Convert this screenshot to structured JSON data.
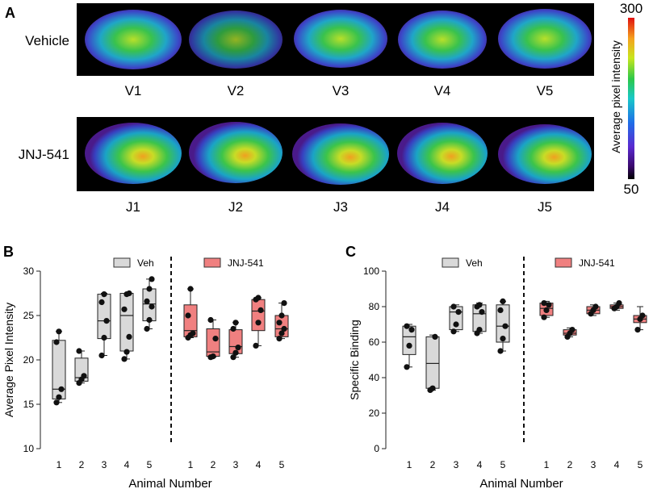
{
  "panel_a": {
    "label": "A",
    "row_labels": [
      "Vehicle",
      "JNJ-541"
    ],
    "vehicle_ids": [
      "V1",
      "V2",
      "V3",
      "V4",
      "V5"
    ],
    "jnj_ids": [
      "J1",
      "J2",
      "J3",
      "J4",
      "J5"
    ],
    "colorbar": {
      "max": "300",
      "min": "50",
      "label": "Average pixel intensity"
    }
  },
  "chart_data": [
    {
      "type": "box",
      "panel": "B",
      "ylabel": "Average Pixel Intensity",
      "xlabel": "Animal Number",
      "ylim": [
        10,
        30
      ],
      "yticks": [
        10,
        15,
        20,
        25,
        30
      ],
      "legend": [
        "Veh",
        "JNJ-541"
      ],
      "colors": {
        "Veh": "#d9d9d9",
        "JNJ-541": "#f08080"
      },
      "groups": [
        {
          "name": "Veh",
          "boxes": [
            {
              "animal": "1",
              "min": 15.2,
              "q1": 15.6,
              "median": 16.7,
              "q3": 22.2,
              "max": 23.2,
              "points": [
                15.2,
                15.8,
                16.7,
                22.0,
                23.2
              ]
            },
            {
              "animal": "2",
              "min": 17.4,
              "q1": 17.6,
              "median": 18.0,
              "q3": 20.2,
              "max": 21.0,
              "points": [
                17.4,
                17.8,
                18.2,
                21.0
              ]
            },
            {
              "animal": "3",
              "min": 20.5,
              "q1": 22.4,
              "median": 24.4,
              "q3": 27.4,
              "max": 27.5,
              "points": [
                20.5,
                22.5,
                24.4,
                26.5,
                27.4
              ]
            },
            {
              "animal": "4",
              "min": 20.1,
              "q1": 21.0,
              "median": 25.0,
              "q3": 27.5,
              "max": 27.5,
              "points": [
                20.1,
                20.9,
                22.6,
                25.7,
                27.4,
                27.5
              ]
            },
            {
              "animal": "5",
              "min": 23.5,
              "q1": 24.4,
              "median": 26.3,
              "q3": 28.0,
              "max": 29.1,
              "points": [
                23.5,
                24.5,
                26.0,
                26.6,
                28.0,
                29.1
              ]
            }
          ]
        },
        {
          "name": "JNJ-541",
          "boxes": [
            {
              "animal": "1",
              "min": 22.5,
              "q1": 22.6,
              "median": 23.3,
              "q3": 26.2,
              "max": 28.0,
              "points": [
                22.5,
                22.8,
                23.0,
                25.0,
                28.0
              ]
            },
            {
              "animal": "2",
              "min": 20.3,
              "q1": 20.4,
              "median": 20.9,
              "q3": 23.5,
              "max": 24.5,
              "points": [
                20.3,
                20.4,
                22.4,
                24.5
              ]
            },
            {
              "animal": "3",
              "min": 20.3,
              "q1": 20.7,
              "median": 21.5,
              "q3": 23.4,
              "max": 24.2,
              "points": [
                20.3,
                20.8,
                21.4,
                23.5,
                24.2
              ]
            },
            {
              "animal": "4",
              "min": 21.6,
              "q1": 23.3,
              "median": 25.5,
              "q3": 26.8,
              "max": 27.0,
              "points": [
                21.6,
                24.2,
                25.6,
                26.8,
                27.0
              ]
            },
            {
              "animal": "5",
              "min": 22.4,
              "q1": 22.6,
              "median": 23.5,
              "q3": 25.0,
              "max": 26.4,
              "points": [
                22.4,
                23.0,
                23.5,
                24.2,
                25.0,
                26.4
              ]
            }
          ]
        }
      ]
    },
    {
      "type": "box",
      "panel": "C",
      "ylabel": "Specific Binding",
      "xlabel": "Animal Number",
      "ylim": [
        0,
        100
      ],
      "yticks": [
        0,
        20,
        40,
        60,
        80,
        100
      ],
      "legend": [
        "Veh",
        "JNJ-541"
      ],
      "colors": {
        "Veh": "#d9d9d9",
        "JNJ-541": "#f08080"
      },
      "groups": [
        {
          "name": "Veh",
          "boxes": [
            {
              "animal": "1",
              "min": 46,
              "q1": 53,
              "median": 63,
              "q3": 69,
              "max": 70,
              "points": [
                46,
                58,
                67,
                69
              ]
            },
            {
              "animal": "2",
              "min": 33,
              "q1": 34,
              "median": 48,
              "q3": 63,
              "max": 64,
              "points": [
                33,
                34,
                63
              ]
            },
            {
              "animal": "3",
              "min": 66,
              "q1": 67,
              "median": 77,
              "q3": 80,
              "max": 81,
              "points": [
                66,
                70,
                77,
                80
              ]
            },
            {
              "animal": "4",
              "min": 65,
              "q1": 66,
              "median": 76,
              "q3": 81,
              "max": 82,
              "points": [
                65,
                67,
                77,
                80,
                81
              ]
            },
            {
              "animal": "5",
              "min": 55,
              "q1": 60,
              "median": 69,
              "q3": 81,
              "max": 83,
              "points": [
                55,
                62,
                69,
                78,
                83
              ]
            }
          ]
        },
        {
          "name": "JNJ-541",
          "boxes": [
            {
              "animal": "1",
              "min": 74,
              "q1": 75,
              "median": 79,
              "q3": 82,
              "max": 83,
              "points": [
                74,
                78,
                81,
                82
              ]
            },
            {
              "animal": "2",
              "min": 63,
              "q1": 64,
              "median": 65,
              "q3": 67,
              "max": 68,
              "points": [
                63,
                65,
                67
              ]
            },
            {
              "animal": "3",
              "min": 75,
              "q1": 76,
              "median": 78,
              "q3": 80,
              "max": 81,
              "points": [
                76,
                78,
                80
              ]
            },
            {
              "animal": "4",
              "min": 78,
              "q1": 79,
              "median": 80,
              "q3": 81,
              "max": 82,
              "points": [
                79,
                80,
                82
              ]
            },
            {
              "animal": "5",
              "min": 67,
              "q1": 71,
              "median": 73,
              "q3": 75,
              "max": 80,
              "points": [
                67,
                73,
                75
              ]
            }
          ]
        }
      ]
    }
  ]
}
